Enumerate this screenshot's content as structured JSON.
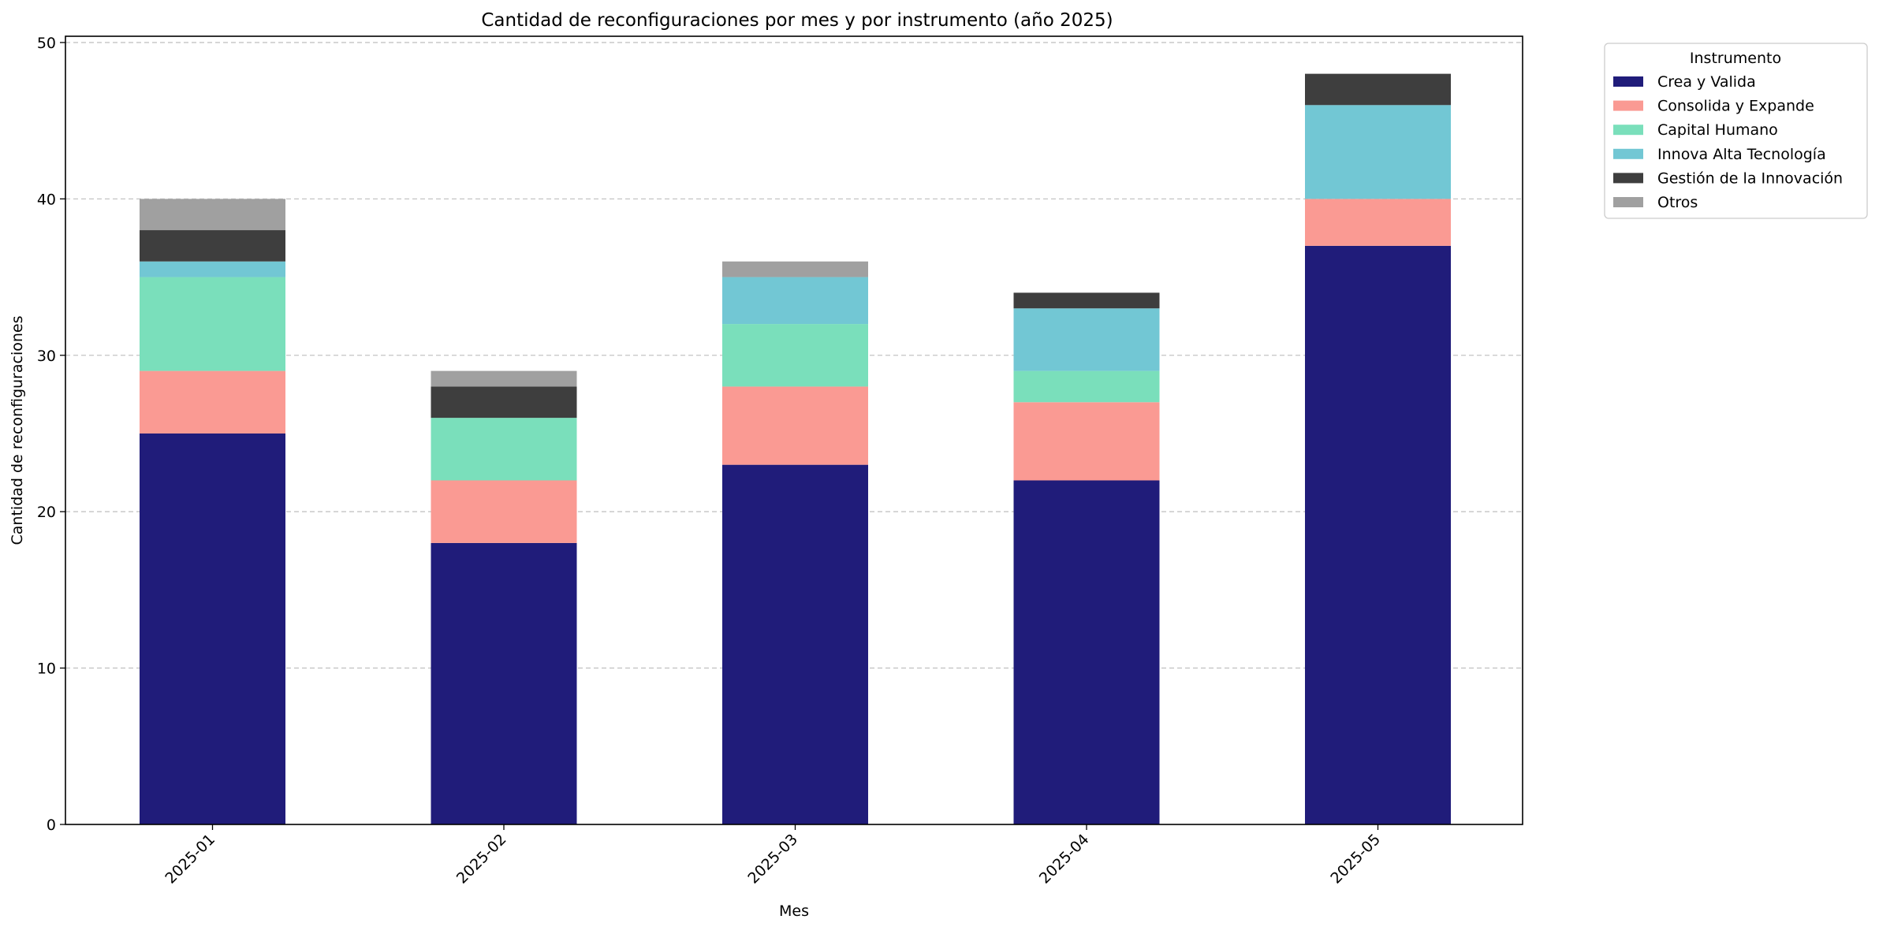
{
  "chart_data": {
    "type": "bar",
    "stacked": true,
    "title": "Cantidad de reconfiguraciones por mes y por instrumento (año 2025)",
    "xlabel": "Mes",
    "ylabel": "Cantidad de reconfiguraciones",
    "categories": [
      "2025-01",
      "2025-02",
      "2025-03",
      "2025-04",
      "2025-05"
    ],
    "ylim": [
      0,
      50.4
    ],
    "yticks": [
      0,
      10,
      20,
      30,
      40,
      50
    ],
    "grid": "horizontal-dashed",
    "legend": {
      "title": "Instrumento",
      "placement": "outside-top-right"
    },
    "series": [
      {
        "name": "Crea y Valida",
        "color": "#201c7a",
        "values": [
          25,
          18,
          23,
          22,
          37
        ]
      },
      {
        "name": "Consolida y Expande",
        "color": "#fa9a93",
        "values": [
          4,
          4,
          5,
          5,
          3
        ]
      },
      {
        "name": "Capital Humano",
        "color": "#7adfbb",
        "values": [
          6,
          4,
          4,
          2,
          0
        ]
      },
      {
        "name": "Innova Alta Tecnología",
        "color": "#72c7d4",
        "values": [
          1,
          0,
          3,
          4,
          6
        ]
      },
      {
        "name": "Gestión de la Innovación",
        "color": "#3e3e3e",
        "values": [
          2,
          2,
          0,
          1,
          2
        ]
      },
      {
        "name": "Otros",
        "color": "#a0a0a0",
        "values": [
          2,
          1,
          1,
          0,
          0
        ]
      }
    ]
  }
}
